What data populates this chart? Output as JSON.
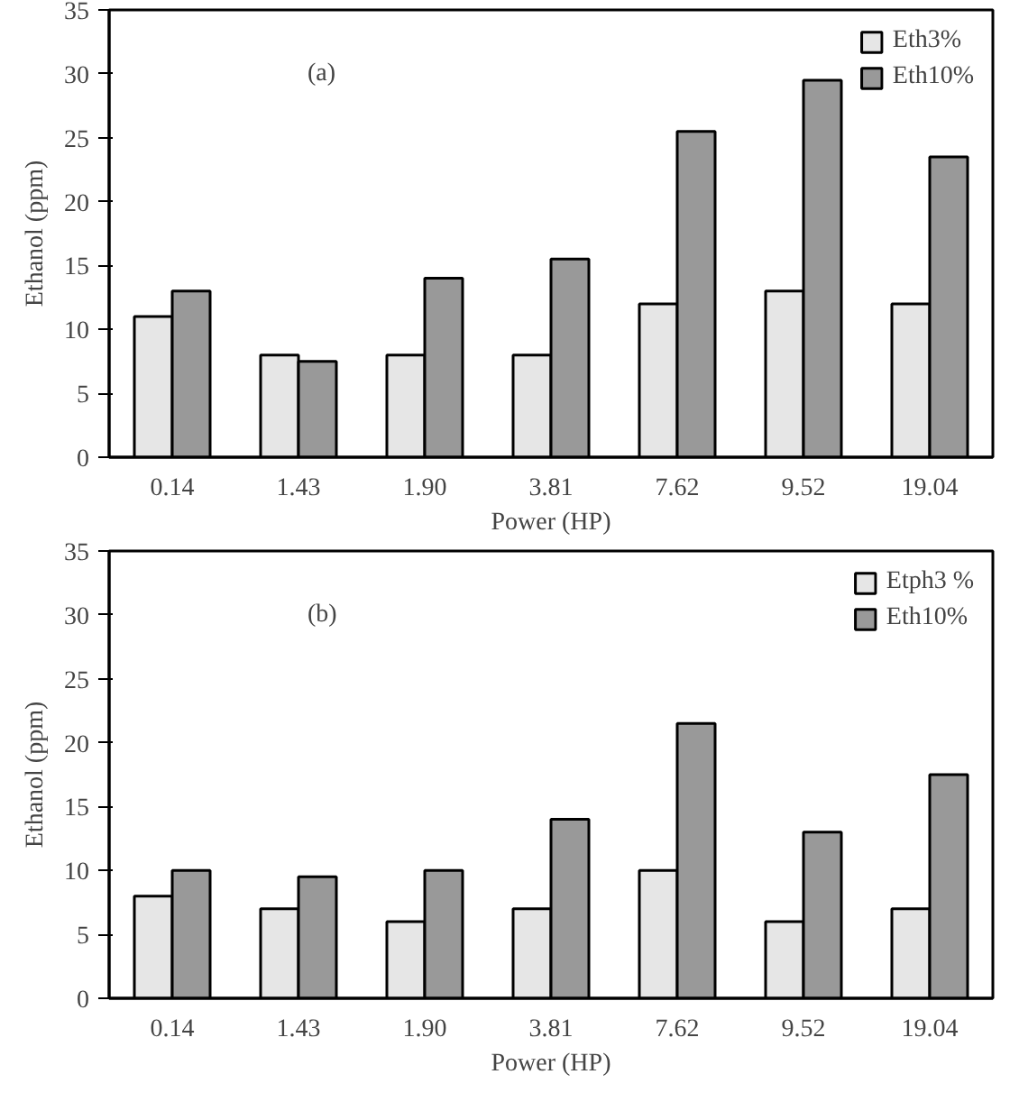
{
  "chart_data": [
    {
      "type": "bar",
      "xlabel": "Power (HP)",
      "ylabel": "Ethanol (ppm)",
      "annotations": [
        "(a)"
      ],
      "categories": [
        "0.14",
        "1.43",
        "1.90",
        "3.81",
        "7.62",
        "9.52",
        "19.04"
      ],
      "ylim": [
        0,
        35
      ],
      "yticks": [
        0,
        5,
        10,
        15,
        20,
        25,
        30,
        35
      ],
      "grid": false,
      "legend": "top right",
      "series": [
        {
          "name": "Eth3%",
          "color": "#e6e6e6",
          "values": [
            11,
            8,
            8,
            8,
            12,
            13,
            12
          ]
        },
        {
          "name": "Eth10%",
          "color": "#999999",
          "values": [
            13,
            7.5,
            14,
            15.5,
            25.5,
            29.5,
            23.5
          ]
        }
      ]
    },
    {
      "type": "bar",
      "xlabel": "Power (HP)",
      "ylabel": "Ethanol (ppm)",
      "annotations": [
        "(b)"
      ],
      "categories": [
        "0.14",
        "1.43",
        "1.90",
        "3.81",
        "7.62",
        "9.52",
        "19.04"
      ],
      "ylim": [
        0,
        35
      ],
      "yticks": [
        0,
        5,
        10,
        15,
        20,
        25,
        30,
        35
      ],
      "grid": false,
      "legend": "top right",
      "series": [
        {
          "name": "Etph3 %",
          "color": "#e6e6e6",
          "values": [
            8,
            7,
            6,
            7,
            10,
            6,
            7
          ]
        },
        {
          "name": "Eth10%",
          "color": "#999999",
          "values": [
            10,
            9.5,
            10,
            14,
            21.5,
            13,
            17.5
          ]
        }
      ]
    }
  ]
}
